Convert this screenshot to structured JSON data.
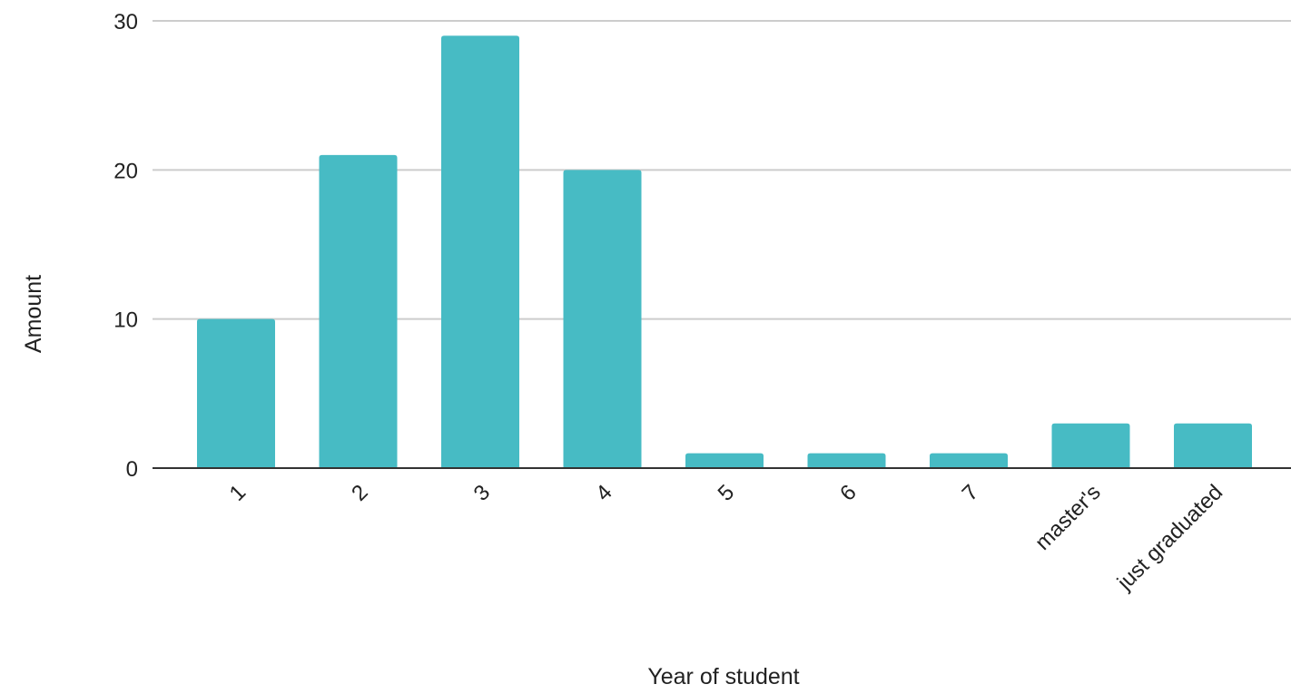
{
  "chart_data": {
    "type": "bar",
    "title": "",
    "xlabel": "Year of student",
    "ylabel": "Amount",
    "categories": [
      "1",
      "2",
      "3",
      "4",
      "5",
      "6",
      "7",
      "master's",
      "just graduated"
    ],
    "values": [
      10,
      21,
      29,
      20,
      1,
      1,
      1,
      3,
      3
    ],
    "ylim": [
      0,
      30
    ],
    "yticks": [
      "0",
      "10",
      "20",
      "30"
    ],
    "grid": true,
    "legend": "none",
    "colors": {
      "bar": "#47bbc4",
      "grid": "#cccccc",
      "baseline": "#333333"
    }
  }
}
